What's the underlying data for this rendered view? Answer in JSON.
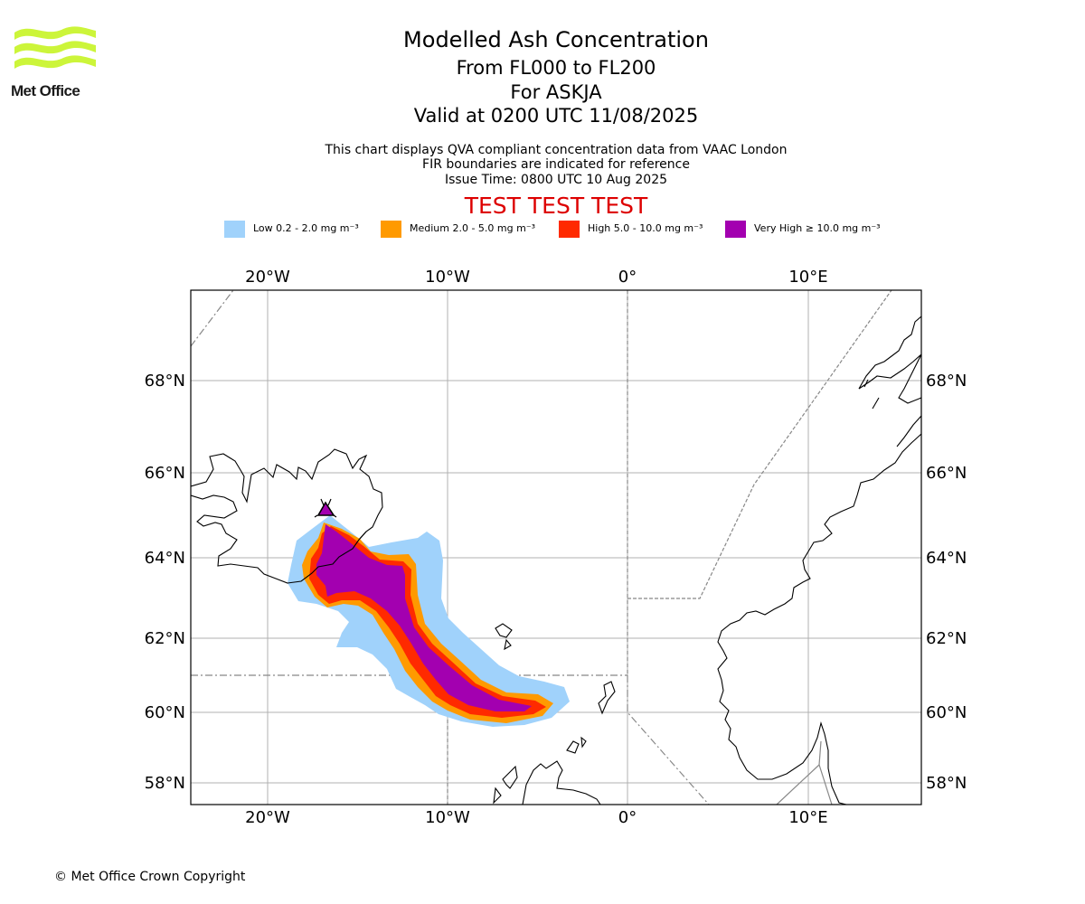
{
  "logo": {
    "text": "Met Office",
    "color": "#ccf53a"
  },
  "header": {
    "title": "Modelled Ash Concentration",
    "levels": "From FL000 to FL200",
    "volcano": "For ASKJA",
    "valid": "Valid at 0200 UTC 11/08/2025",
    "note1": "This chart displays QVA compliant concentration data from VAAC London",
    "note2": "FIR boundaries are indicated for reference",
    "issue": "Issue Time: 0800 UTC 10 Aug 2025",
    "test": "TEST TEST TEST"
  },
  "legend": [
    {
      "label": "Low 0.2 - 2.0 mg m⁻³",
      "color": "#a0d2fb"
    },
    {
      "label": "Medium 2.0 - 5.0 mg m⁻³",
      "color": "#ff9a00"
    },
    {
      "label": "High 5.0 - 10.0 mg m⁻³",
      "color": "#ff2a00"
    },
    {
      "label": "Very High  ≥  10.0 mg m⁻³",
      "color": "#a300b0"
    }
  ],
  "map": {
    "lon_labels": [
      "20°W",
      "10°W",
      "0°",
      "10°E"
    ],
    "lat_labels": [
      "68°N",
      "66°N",
      "64°N",
      "62°N",
      "60°N",
      "58°N"
    ],
    "volcano_marker": "ASKJA"
  },
  "footer": {
    "copyright": "© Met Office Crown Copyright"
  }
}
